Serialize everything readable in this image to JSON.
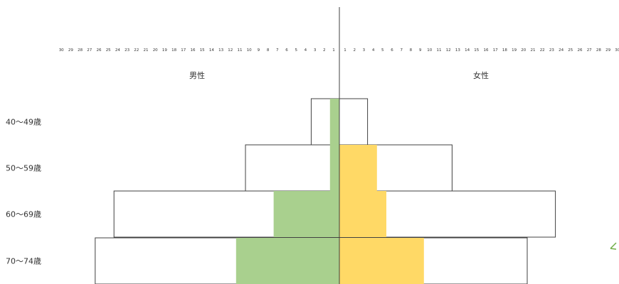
{
  "chart_data": {
    "type": "bar",
    "orientation": "horizontal",
    "side_labels": {
      "left": "男性",
      "right": "女性"
    },
    "categories": [
      "40～49歳",
      "50～59歳",
      "60～69歳",
      "70～74歳"
    ],
    "x_ticks": [
      "30",
      "29",
      "28",
      "27",
      "26",
      "25",
      "24",
      "23",
      "22",
      "21",
      "20",
      "19",
      "18",
      "17",
      "16",
      "15",
      "14",
      "13",
      "12",
      "11",
      "10",
      "9",
      "8",
      "7",
      "6",
      "5",
      "4",
      "3",
      "2",
      "1",
      "1",
      "2",
      "3",
      "4",
      "5",
      "6",
      "7",
      "8",
      "9",
      "10",
      "11",
      "12",
      "13",
      "14",
      "15",
      "16",
      "17",
      "18",
      "19",
      "20",
      "21",
      "22",
      "23",
      "24",
      "25",
      "26",
      "27",
      "28",
      "29",
      "30"
    ],
    "xlim": [
      -30,
      30
    ],
    "grid": false,
    "series": [
      {
        "side": "left",
        "style": "outline",
        "values": [
          3,
          10,
          24,
          26
        ]
      },
      {
        "side": "right",
        "style": "outline",
        "values": [
          3,
          12,
          23,
          20
        ]
      },
      {
        "side": "left",
        "style": "filled",
        "color": "#a9d08e",
        "values": [
          1,
          1,
          7,
          11
        ]
      },
      {
        "side": "right",
        "style": "filled",
        "color": "#ffd966",
        "values": [
          0,
          4,
          5,
          9
        ]
      }
    ]
  }
}
